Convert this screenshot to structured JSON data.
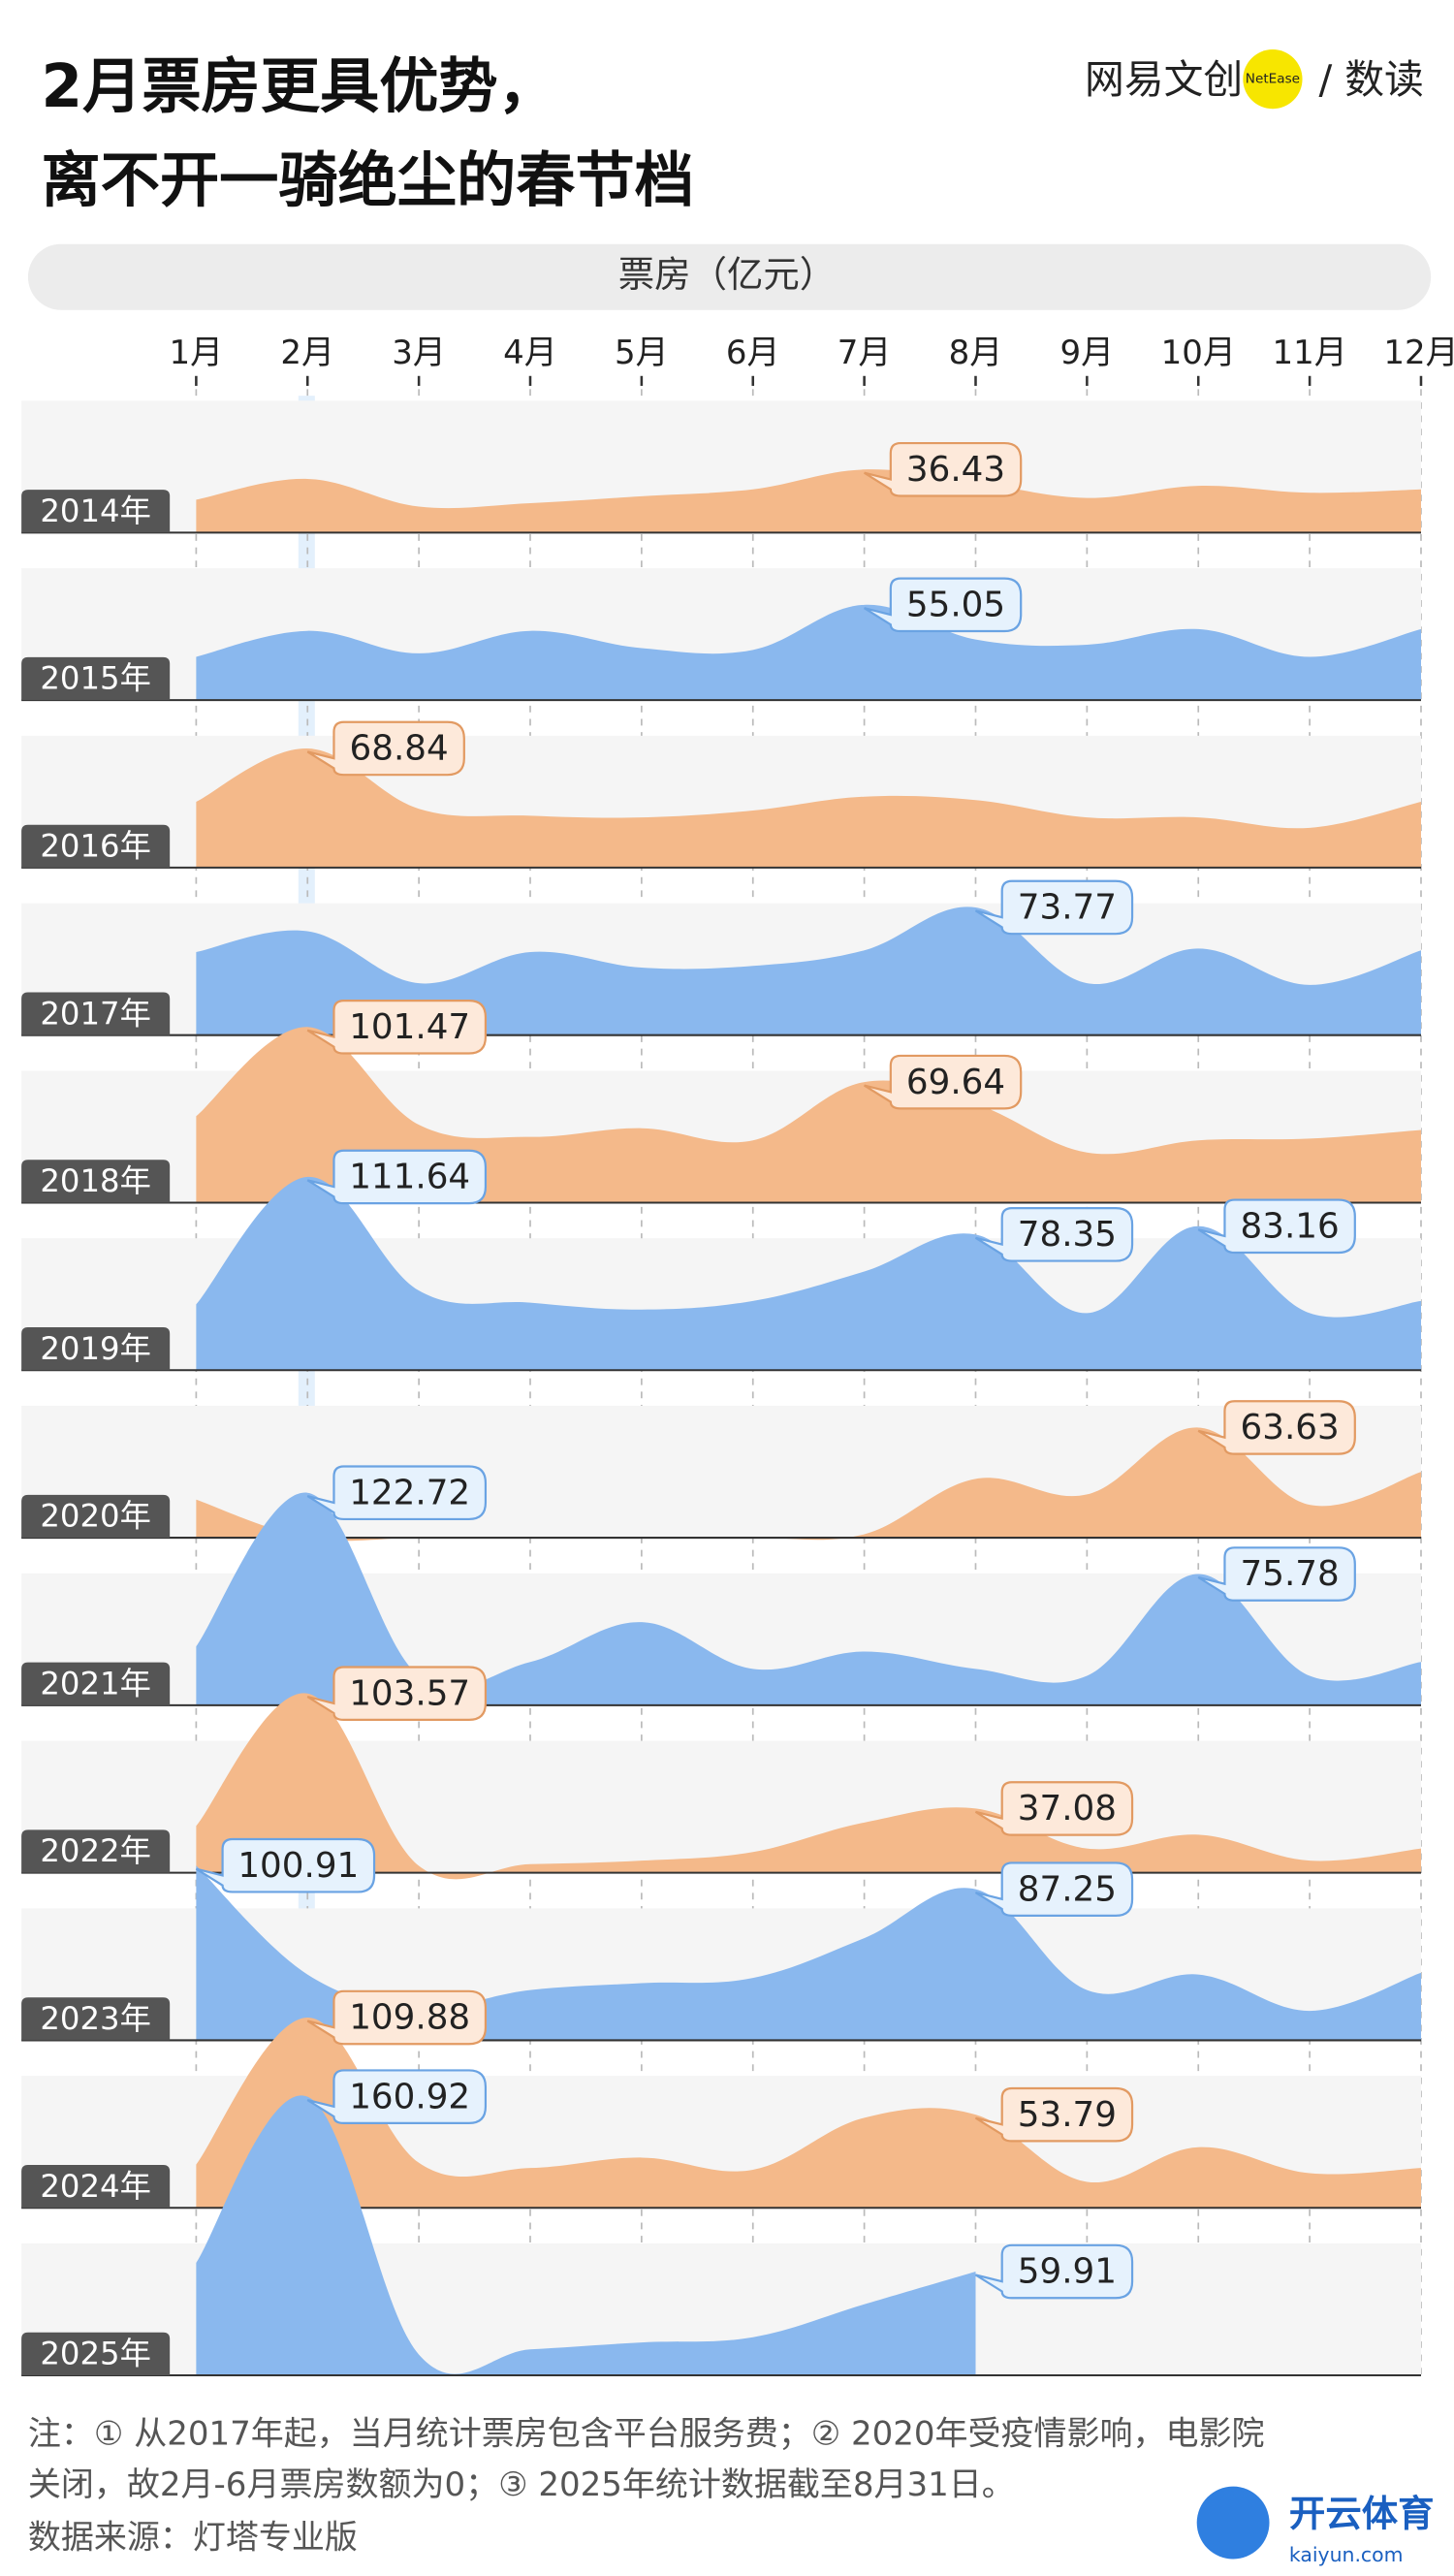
{
  "chart_data": {
    "type": "ridgeline",
    "title": [
      "2月票房更具优势，",
      "离不开一骑绝尘的春节档"
    ],
    "brand": {
      "name": "网易文创",
      "badge": "NetEase",
      "column": "/ 数读"
    },
    "axis_label": "票房（亿元）",
    "categories": [
      "1月",
      "2月",
      "3月",
      "4月",
      "5月",
      "6月",
      "7月",
      "8月",
      "9月",
      "10月",
      "11月",
      "12月"
    ],
    "series": [
      {
        "name": "2014年",
        "color": "#f4b98a",
        "values": [
          19,
          31,
          15,
          17,
          21,
          25,
          36.43,
          29,
          20,
          27,
          23,
          25
        ],
        "value_labels": [
          null,
          null,
          null,
          null,
          null,
          null,
          "36.43",
          null,
          null,
          null,
          null,
          null
        ]
      },
      {
        "name": "2015年",
        "color": "#8ab8ee",
        "values": [
          25,
          40,
          27,
          40,
          30,
          29,
          55.05,
          35,
          32,
          41,
          25,
          41
        ],
        "value_labels": [
          null,
          null,
          null,
          null,
          null,
          null,
          "55.05",
          null,
          null,
          null,
          null,
          null
        ]
      },
      {
        "name": "2016年",
        "color": "#f4b98a",
        "values": [
          38,
          68.84,
          34,
          30,
          29,
          33,
          41,
          39,
          29,
          29,
          23,
          38
        ],
        "value_labels": [
          null,
          "68.84",
          null,
          null,
          null,
          null,
          null,
          null,
          null,
          null,
          null,
          null
        ]
      },
      {
        "name": "2017年",
        "color": "#8ab8ee",
        "values": [
          48,
          60,
          30,
          48,
          39,
          40,
          49,
          73.77,
          30,
          50,
          29,
          49
        ],
        "value_labels": [
          null,
          null,
          null,
          null,
          null,
          null,
          null,
          "73.77",
          null,
          null,
          null,
          null
        ]
      },
      {
        "name": "2018年",
        "color": "#f4b98a",
        "values": [
          50,
          101.47,
          45,
          38,
          43,
          36,
          69.64,
          57,
          29,
          36,
          37,
          42
        ],
        "value_labels": [
          null,
          "101.47",
          null,
          null,
          null,
          null,
          "69.64",
          null,
          null,
          null,
          null,
          null
        ]
      },
      {
        "name": "2019年",
        "color": "#8ab8ee",
        "values": [
          38,
          111.64,
          46,
          39,
          35,
          40,
          57,
          78.35,
          33,
          83.16,
          33,
          40
        ],
        "value_labels": [
          null,
          "111.64",
          null,
          null,
          null,
          null,
          null,
          "78.35",
          null,
          "83.16",
          null,
          null
        ]
      },
      {
        "name": "2020年",
        "color": "#f4b98a",
        "values": [
          22,
          0,
          0,
          0,
          0,
          0,
          2,
          34,
          25,
          63.63,
          19,
          38
        ],
        "value_labels": [
          null,
          null,
          null,
          null,
          null,
          null,
          null,
          null,
          null,
          "63.63",
          null,
          null
        ]
      },
      {
        "name": "2021年",
        "color": "#8ab8ee",
        "values": [
          34,
          122.72,
          17,
          25,
          48,
          21,
          31,
          21,
          17,
          75.78,
          17,
          25
        ],
        "value_labels": [
          null,
          "122.72",
          null,
          null,
          null,
          null,
          null,
          null,
          null,
          "75.78",
          null,
          null
        ]
      },
      {
        "name": "2022年",
        "color": "#f4b98a",
        "values": [
          27,
          103.57,
          4,
          5,
          7,
          12,
          29,
          37.08,
          14,
          22,
          7,
          14
        ],
        "value_labels": [
          null,
          "103.57",
          null,
          null,
          null,
          null,
          null,
          "37.08",
          null,
          null,
          null,
          null
        ]
      },
      {
        "name": "2023年",
        "color": "#8ab8ee",
        "values": [
          100.91,
          38,
          19,
          29,
          33,
          36,
          59,
          87.25,
          29,
          38,
          17,
          39
        ],
        "value_labels": [
          "100.91",
          null,
          null,
          null,
          null,
          null,
          null,
          "87.25",
          null,
          null,
          null,
          null
        ]
      },
      {
        "name": "2024年",
        "color": "#f4b98a",
        "values": [
          25,
          109.88,
          26,
          23,
          29,
          22,
          52,
          53.79,
          15,
          35,
          20,
          23
        ],
        "value_labels": [
          null,
          "109.88",
          null,
          null,
          null,
          null,
          null,
          "53.79",
          null,
          null,
          null,
          null
        ]
      },
      {
        "name": "2025年",
        "color": "#8ab8ee",
        "values": [
          65,
          160.92,
          12,
          15,
          19,
          22,
          41,
          59.91,
          null,
          null,
          null,
          null
        ],
        "value_labels": [
          null,
          "160.92",
          null,
          null,
          null,
          null,
          null,
          "59.91",
          null,
          null,
          null,
          null
        ]
      }
    ],
    "note": [
      "注：① 从2017年起，当月统计票房包含平台服务费；② 2020年受疫情影响，电影院",
      "关闭，故2月-6月票房数额为0；③ 2025年统计数据截至8月31日。"
    ],
    "source": "数据来源：灯塔专业版",
    "watermark": {
      "name": "开云体育",
      "url": "kaiyun.com"
    }
  }
}
